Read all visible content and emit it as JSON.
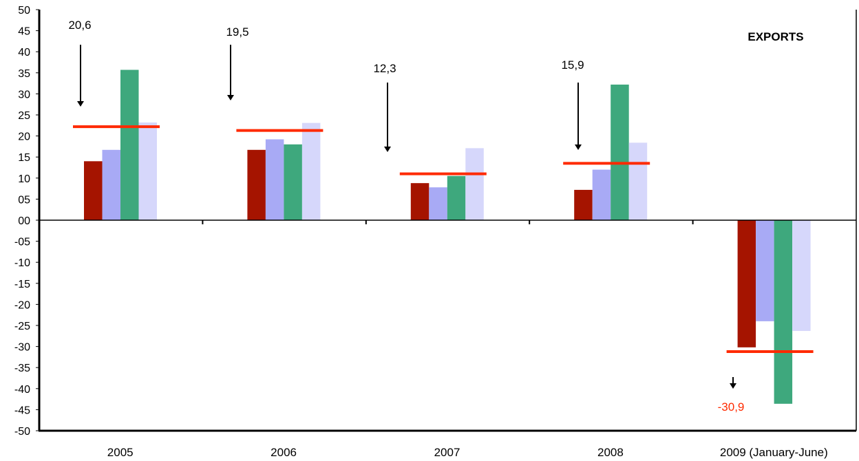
{
  "chart_data": {
    "type": "bar",
    "title": "EXPORTS",
    "categories": [
      "2005",
      "2006",
      "2007",
      "2008",
      "2009 (January-June)"
    ],
    "series": [
      {
        "values": [
          14,
          16.7,
          8.8,
          7.2,
          -30.2
        ],
        "color": "#a51400"
      },
      {
        "values": [
          16.7,
          19.2,
          7.8,
          12,
          -24
        ],
        "color": "#a8aaf5"
      },
      {
        "values": [
          35.7,
          18,
          10.5,
          32.2,
          -43.6
        ],
        "color": "#3ea87d"
      },
      {
        "values": [
          23.2,
          23.1,
          17.1,
          18.4,
          -26.3
        ],
        "color": "#d6d7fb"
      }
    ],
    "average_lines": {
      "values": [
        22.2,
        21.3,
        11,
        13.5,
        -31.2
      ],
      "color": "#ff2a00"
    },
    "annotations": [
      {
        "label": "20,6",
        "color": "#000000"
      },
      {
        "label": "19,5",
        "color": "#000000"
      },
      {
        "label": "12,3",
        "color": "#000000"
      },
      {
        "label": "15,9",
        "color": "#000000"
      },
      {
        "label": "-30,9",
        "color": "#ff2a00"
      }
    ],
    "y_ticks": [
      "50",
      "45",
      "40",
      "35",
      "30",
      "25",
      "20",
      "15",
      "10",
      "05",
      "00",
      "-05",
      "-10",
      "-15",
      "-20",
      "-25",
      "-30",
      "-35",
      "-40",
      "-45",
      "-50"
    ],
    "ylim": [
      -50,
      50
    ],
    "grid": false,
    "legend": "none"
  }
}
